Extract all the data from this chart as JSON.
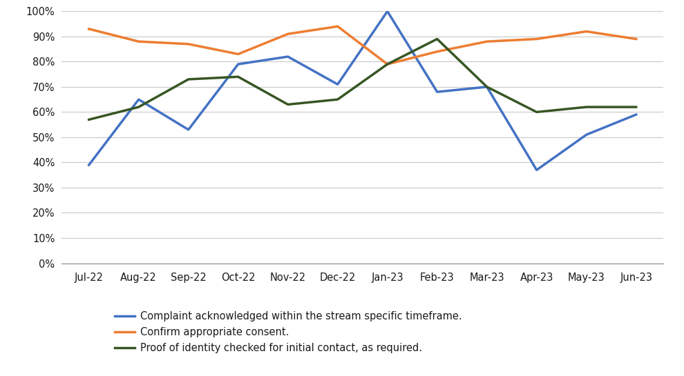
{
  "x_labels": [
    "Jul-22",
    "Aug-22",
    "Sep-22",
    "Oct-22",
    "Nov-22",
    "Dec-22",
    "Jan-23",
    "Feb-23",
    "Mar-23",
    "Apr-23",
    "May-23",
    "Jun-23"
  ],
  "series": [
    {
      "name": "Complaint acknowledged within the stream specific timeframe.",
      "color": "#4472C4",
      "values": [
        0.39,
        0.65,
        0.53,
        0.79,
        0.82,
        0.71,
        1.0,
        0.68,
        0.7,
        0.37,
        0.51,
        0.59
      ]
    },
    {
      "name": "Confirm appropriate consent.",
      "color": "#ED7D31",
      "values": [
        0.93,
        0.88,
        0.87,
        0.83,
        0.91,
        0.94,
        0.79,
        0.84,
        0.88,
        0.89,
        0.92,
        0.89
      ]
    },
    {
      "name": "Proof of identity checked for initial contact, as required.",
      "color": "#375623",
      "values": [
        0.57,
        0.62,
        0.73,
        0.74,
        0.63,
        0.65,
        0.79,
        0.89,
        0.7,
        0.6,
        0.62,
        0.62
      ]
    }
  ],
  "ylim": [
    0,
    1.0
  ],
  "yticks": [
    0,
    0.1,
    0.2,
    0.3,
    0.4,
    0.5,
    0.6,
    0.7,
    0.8,
    0.9,
    1.0
  ],
  "background_color": "#ffffff",
  "grid_color": "#c8c8c8",
  "line_width": 2.5,
  "legend_fontsize": 10.5,
  "tick_fontsize": 10.5,
  "axis_label_color": "#1a1a1a"
}
